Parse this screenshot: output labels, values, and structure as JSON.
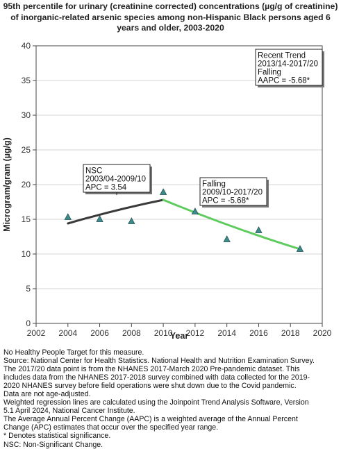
{
  "title_lines": [
    "95th percentile for urinary (creatinine corrected) concentrations (µg/g of creatinine)",
    "of inorganic-related arsenic species among non-Hispanic Black persons aged 6",
    "years and older, 2003-2020"
  ],
  "chart_data": {
    "type": "scatter",
    "title": "95th percentile for urinary (creatinine corrected) concentrations (µg/g of creatinine) of inorganic-related arsenic species among non-Hispanic Black persons aged 6 years and older, 2003-2020",
    "xlabel": "Year",
    "ylabel": "Microgram/gram (µg/g)",
    "xlim": [
      2002,
      2020
    ],
    "ylim": [
      0,
      40
    ],
    "x_ticks": [
      "2002",
      "2004",
      "2006",
      "2008",
      "2010",
      "2012",
      "2014",
      "2016",
      "2018",
      "2020"
    ],
    "y_ticks": [
      "0",
      "5",
      "10",
      "15",
      "20",
      "25",
      "30",
      "35",
      "40"
    ],
    "grid": "horizontal",
    "points": {
      "x": [
        2004,
        2006,
        2008,
        2010,
        2012,
        2014,
        2016,
        2018.6
      ],
      "y": [
        15.3,
        15.0,
        14.7,
        18.9,
        16.1,
        12.1,
        13.4,
        10.7
      ],
      "marker": "triangle",
      "color": "#3d8c8c"
    },
    "trend_segments": [
      {
        "x": [
          2004,
          2010
        ],
        "y": [
          14.4,
          17.8
        ],
        "color": "#3a3a3a",
        "label": [
          "NSC",
          "2003/04-2009/10",
          "APC =  3.54"
        ]
      },
      {
        "x": [
          2010,
          2018.6
        ],
        "y": [
          17.8,
          10.7
        ],
        "color": "#5ecb5e",
        "label": [
          "Falling",
          "2009/10-2017/20",
          "APC = -5.68*"
        ]
      }
    ],
    "annotations": [
      {
        "lines": [
          "Recent Trend",
          "2013/14-2017/20",
          "Falling",
          "AAPC = -5.68*"
        ]
      }
    ]
  },
  "notes": [
    "No Healthy People Target for this measure.",
    "Source: National Center for Health Statistics. National Health and Nutrition Examination Survey.",
    "The 2017/20 data point is from the NHANES 2017-March 2020 Pre-pandemic dataset. This",
    "includes data from the NHANES 2017-2018 survey combined with data collected for the 2019-",
    "2020 NHANES survey before field operations were shut down due to the Covid pandemic.",
    "Data are not age-adjusted.",
    "Weighted regression lines are calculated using the Joinpoint Trend Analysis Software, Version",
    "5.1 April 2024, National Cancer Institute.",
    "The Average Annual Percent Change (AAPC) is a weighted average of the Annual Percent",
    "Change (APC) estimates that occur over the specified year range.",
    "* Denotes statistical significance.",
    "NSC: Non-Significant Change."
  ]
}
